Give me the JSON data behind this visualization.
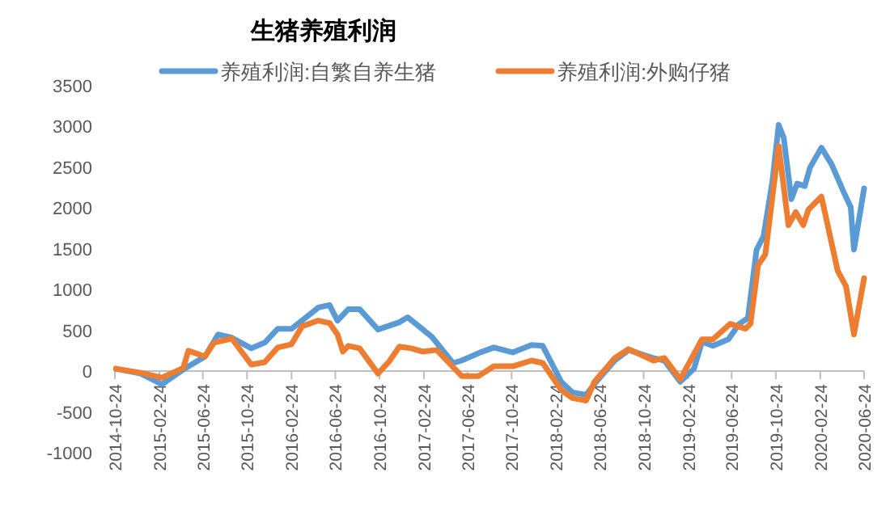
{
  "chart_data": {
    "type": "line",
    "title": "生猪养殖利润",
    "legend": "top",
    "grid": false,
    "ylim": [
      -1000,
      3500
    ],
    "yticks": [
      -1000,
      -500,
      0,
      500,
      1000,
      1500,
      2000,
      2500,
      3000,
      3500
    ],
    "xlim": [
      "2014-10-24",
      "2020-06-24"
    ],
    "xticks": [
      "2014-10-24",
      "2015-02-24",
      "2015-06-24",
      "2015-10-24",
      "2016-02-24",
      "2016-06-24",
      "2016-10-24",
      "2017-02-24",
      "2017-06-24",
      "2017-10-24",
      "2018-02-24",
      "2018-06-24",
      "2018-10-24",
      "2019-02-24",
      "2019-06-24",
      "2019-10-24",
      "2020-02-24",
      "2020-06-24"
    ],
    "series": [
      {
        "name": "养殖利润:自繁自养生猪",
        "color": "#5b9bd5",
        "x": [
          "2014-10-27",
          "2015-01-03",
          "2015-03-03",
          "2015-05-01",
          "2015-06-30",
          "2015-08-05",
          "2015-09-12",
          "2015-11-05",
          "2015-12-12",
          "2016-01-17",
          "2016-02-24",
          "2016-03-24",
          "2016-05-08",
          "2016-06-08",
          "2016-06-30",
          "2016-07-30",
          "2016-08-30",
          "2016-10-20",
          "2016-12-18",
          "2017-01-10",
          "2017-03-18",
          "2017-05-15",
          "2017-06-08",
          "2017-07-30",
          "2017-09-05",
          "2017-10-27",
          "2017-12-18",
          "2018-01-18",
          "2018-03-10",
          "2018-04-10",
          "2018-05-18",
          "2018-06-15",
          "2018-08-05",
          "2018-09-12",
          "2018-11-20",
          "2018-12-20",
          "2019-02-02",
          "2019-03-12",
          "2019-04-03",
          "2019-05-03",
          "2019-06-15",
          "2019-07-15",
          "2019-08-08",
          "2019-09-01",
          "2019-09-20",
          "2019-10-15",
          "2019-11-01",
          "2019-11-15",
          "2019-12-06",
          "2019-12-22",
          "2020-01-12",
          "2020-01-27",
          "2020-02-27",
          "2020-03-27",
          "2020-04-27",
          "2020-05-18",
          "2020-05-27",
          "2020-06-24"
        ],
        "values": [
          30,
          -30,
          -160,
          20,
          180,
          450,
          410,
          280,
          350,
          520,
          520,
          620,
          780,
          810,
          620,
          760,
          760,
          510,
          600,
          660,
          420,
          100,
          130,
          230,
          290,
          230,
          320,
          310,
          -130,
          -260,
          -290,
          -130,
          130,
          260,
          160,
          130,
          -130,
          30,
          360,
          310,
          390,
          580,
          650,
          1490,
          1650,
          2340,
          3020,
          2860,
          2110,
          2300,
          2270,
          2500,
          2740,
          2530,
          2210,
          2010,
          1490,
          2240
        ]
      },
      {
        "name": "养殖利润:外购仔猪",
        "color": "#ed7d31",
        "x": [
          "2014-10-27",
          "2015-01-03",
          "2015-03-03",
          "2015-05-01",
          "2015-05-15",
          "2015-06-30",
          "2015-07-25",
          "2015-09-12",
          "2015-11-05",
          "2015-12-12",
          "2016-01-17",
          "2016-02-24",
          "2016-03-24",
          "2016-05-08",
          "2016-06-08",
          "2016-06-30",
          "2016-07-15",
          "2016-07-30",
          "2016-08-30",
          "2016-10-20",
          "2016-11-20",
          "2016-12-18",
          "2017-01-20",
          "2017-02-20",
          "2017-03-31",
          "2017-06-08",
          "2017-07-25",
          "2017-09-05",
          "2017-10-27",
          "2017-12-18",
          "2018-01-18",
          "2018-03-10",
          "2018-04-10",
          "2018-05-18",
          "2018-06-10",
          "2018-08-05",
          "2018-09-12",
          "2018-11-20",
          "2018-12-20",
          "2019-02-02",
          "2019-04-03",
          "2019-05-03",
          "2019-06-20",
          "2019-08-01",
          "2019-08-15",
          "2019-09-05",
          "2019-09-25",
          "2019-11-01",
          "2019-11-28",
          "2019-12-18",
          "2020-01-08",
          "2020-01-22",
          "2020-02-27",
          "2020-04-12",
          "2020-05-05",
          "2020-05-27",
          "2020-06-24"
        ],
        "values": [
          30,
          -20,
          -80,
          40,
          250,
          180,
          350,
          400,
          80,
          110,
          290,
          330,
          550,
          620,
          590,
          450,
          240,
          310,
          280,
          -30,
          120,
          300,
          280,
          240,
          260,
          -60,
          -60,
          60,
          60,
          130,
          100,
          -230,
          -330,
          -360,
          -130,
          160,
          270,
          130,
          160,
          -100,
          390,
          390,
          580,
          520,
          580,
          1300,
          1430,
          2760,
          1790,
          1950,
          1790,
          1980,
          2140,
          1230,
          1040,
          450,
          1140
        ]
      }
    ]
  }
}
